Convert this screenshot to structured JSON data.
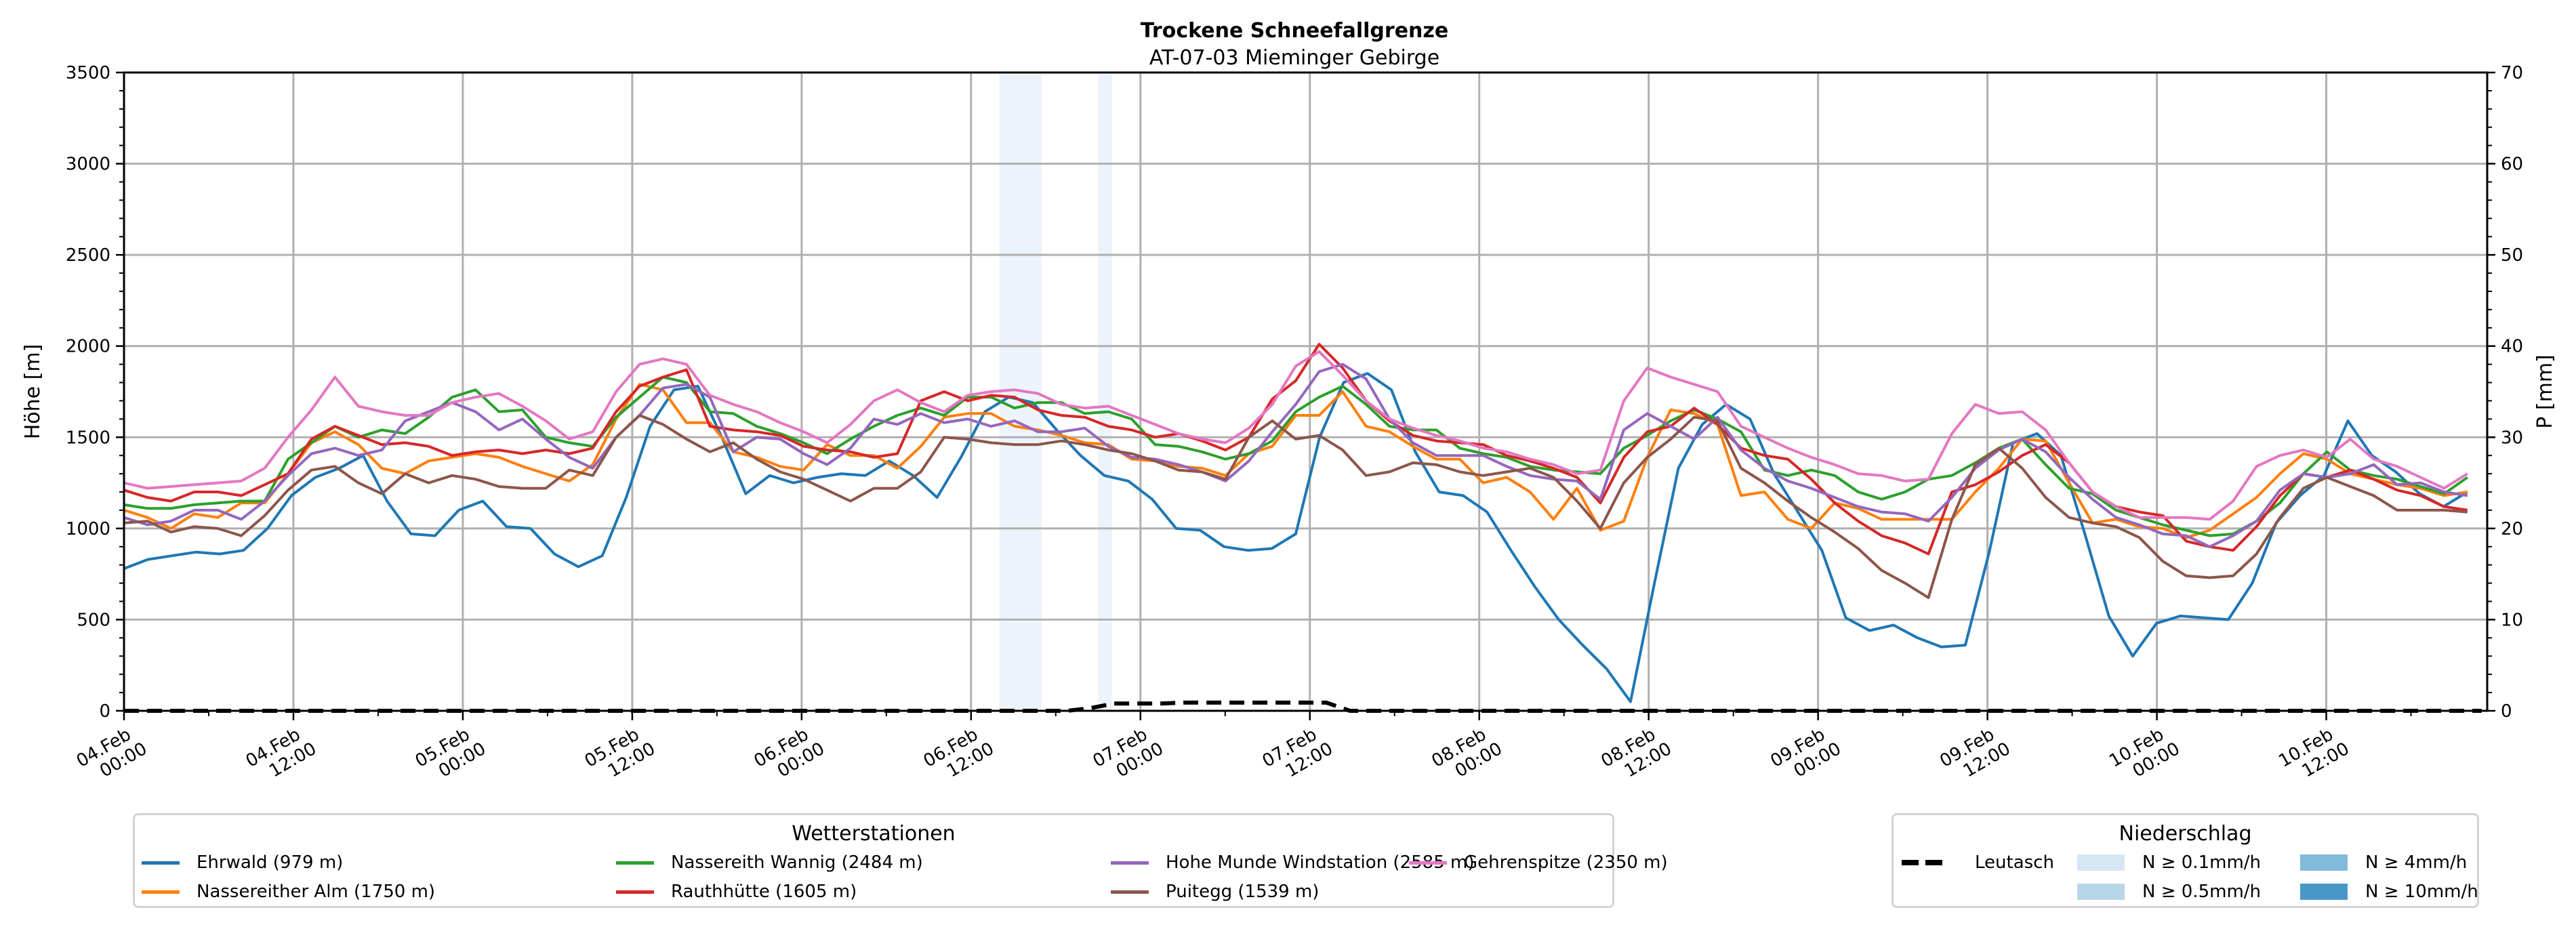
{
  "chart_data": {
    "type": "line",
    "title": "Trockene Schneefallgrenze",
    "subtitle": "AT-07-03 Mieminger Gebirge",
    "ylabel": "Höhe [m]",
    "y2label": "P [mm]",
    "ylim": [
      0,
      3500
    ],
    "y2lim": [
      0,
      70
    ],
    "yticks": [
      "0",
      "500",
      "1000",
      "1500",
      "2000",
      "2500",
      "3000",
      "3500"
    ],
    "y2ticks": [
      "0",
      "10",
      "20",
      "30",
      "40",
      "50",
      "60",
      "70"
    ],
    "grid": true,
    "x_start": "04.Feb 00:00",
    "x_step_hours": 2,
    "x_range_hours": [
      0,
      167.4
    ],
    "xticks": [
      {
        "hour": 0,
        "label": [
          "04.Feb",
          "00:00"
        ]
      },
      {
        "hour": 12,
        "label": [
          "04.Feb",
          "12:00"
        ]
      },
      {
        "hour": 24,
        "label": [
          "05.Feb",
          "00:00"
        ]
      },
      {
        "hour": 36,
        "label": [
          "05.Feb",
          "12:00"
        ]
      },
      {
        "hour": 48,
        "label": [
          "06.Feb",
          "00:00"
        ]
      },
      {
        "hour": 60,
        "label": [
          "06.Feb",
          "12:00"
        ]
      },
      {
        "hour": 72,
        "label": [
          "07.Feb",
          "00:00"
        ]
      },
      {
        "hour": 84,
        "label": [
          "07.Feb",
          "12:00"
        ]
      },
      {
        "hour": 96,
        "label": [
          "08.Feb",
          "00:00"
        ]
      },
      {
        "hour": 108,
        "label": [
          "08.Feb",
          "12:00"
        ]
      },
      {
        "hour": 120,
        "label": [
          "09.Feb",
          "00:00"
        ]
      },
      {
        "hour": 132,
        "label": [
          "09.Feb",
          "12:00"
        ]
      },
      {
        "hour": 144,
        "label": [
          "10.Feb",
          "00:00"
        ]
      },
      {
        "hour": 156,
        "label": [
          "10.Feb",
          "12:00"
        ]
      }
    ],
    "series": [
      {
        "name": "Ehrwald (979 m)",
        "color": "#1f77b4",
        "values": [
          780,
          830,
          850,
          870,
          860,
          880,
          1000,
          1180,
          1280,
          1330,
          1400,
          1150,
          970,
          960,
          1100,
          1150,
          1010,
          1000,
          860,
          790,
          850,
          1170,
          1560,
          1760,
          1780,
          1500,
          1190,
          1290,
          1250,
          1280,
          1300,
          1290,
          1370,
          1290,
          1170,
          1390,
          1640,
          1720,
          1690,
          1540,
          1400,
          1290,
          1260,
          1160,
          1000,
          990,
          900,
          880,
          890,
          970,
          1500,
          1800,
          1850,
          1760,
          1420,
          1200,
          1180,
          1090,
          880,
          680,
          500,
          360,
          230,
          50,
          700,
          1330,
          1570,
          1680,
          1600,
          1300,
          1090,
          880,
          510,
          440,
          470,
          400,
          350,
          360,
          870,
          1470,
          1520,
          1400,
          970,
          520,
          300,
          480,
          520,
          510,
          500,
          700,
          1030,
          1180,
          1290,
          1590,
          1400,
          1310,
          1190,
          1120,
          1200
        ]
      },
      {
        "name": "Nassereither Alm (1750 m)",
        "color": "#ff7f0e",
        "values": [
          1100,
          1060,
          1000,
          1080,
          1060,
          1140,
          1140,
          1300,
          1470,
          1530,
          1460,
          1330,
          1300,
          1370,
          1390,
          1410,
          1390,
          1340,
          1300,
          1260,
          1350,
          1600,
          1790,
          1760,
          1580,
          1580,
          1420,
          1390,
          1340,
          1320,
          1460,
          1400,
          1400,
          1330,
          1450,
          1610,
          1630,
          1630,
          1560,
          1540,
          1510,
          1470,
          1460,
          1380,
          1370,
          1340,
          1330,
          1290,
          1410,
          1450,
          1620,
          1620,
          1750,
          1560,
          1530,
          1450,
          1380,
          1380,
          1250,
          1280,
          1200,
          1050,
          1220,
          990,
          1040,
          1390,
          1650,
          1630,
          1570,
          1180,
          1200,
          1050,
          1000,
          1140,
          1110,
          1050,
          1050,
          1050,
          1050,
          1200,
          1330,
          1490,
          1480,
          1250,
          1030,
          1050,
          1010,
          1000,
          950,
          990,
          1080,
          1170,
          1300,
          1410,
          1380,
          1300,
          1270,
          1240,
          1220,
          1180,
          1200
        ]
      },
      {
        "name": "Nassereith Wannig (2484 m)",
        "color": "#2ca02c",
        "values": [
          1130,
          1110,
          1110,
          1130,
          1140,
          1150,
          1150,
          1380,
          1470,
          1560,
          1500,
          1540,
          1520,
          1610,
          1720,
          1760,
          1640,
          1650,
          1500,
          1470,
          1450,
          1610,
          1720,
          1830,
          1800,
          1640,
          1630,
          1560,
          1520,
          1470,
          1410,
          1490,
          1560,
          1620,
          1660,
          1620,
          1720,
          1720,
          1660,
          1690,
          1690,
          1630,
          1640,
          1600,
          1460,
          1450,
          1420,
          1380,
          1410,
          1480,
          1640,
          1720,
          1780,
          1680,
          1560,
          1540,
          1540,
          1440,
          1410,
          1390,
          1340,
          1320,
          1310,
          1300,
          1440,
          1510,
          1590,
          1650,
          1600,
          1530,
          1320,
          1290,
          1320,
          1290,
          1200,
          1160,
          1200,
          1270,
          1290,
          1360,
          1440,
          1490,
          1350,
          1220,
          1190,
          1100,
          1060,
          1020,
          990,
          960,
          970,
          1040,
          1140,
          1300,
          1420,
          1320,
          1290,
          1270,
          1230,
          1190,
          1280
        ]
      },
      {
        "name": "Rauthhütte (1605 m)",
        "color": "#d62728",
        "values": [
          1210,
          1170,
          1150,
          1200,
          1200,
          1180,
          1240,
          1300,
          1490,
          1560,
          1510,
          1460,
          1470,
          1450,
          1400,
          1420,
          1430,
          1410,
          1430,
          1410,
          1440,
          1640,
          1780,
          1830,
          1870,
          1560,
          1540,
          1530,
          1510,
          1450,
          1430,
          1420,
          1390,
          1410,
          1700,
          1750,
          1700,
          1730,
          1720,
          1650,
          1620,
          1610,
          1560,
          1540,
          1500,
          1520,
          1480,
          1430,
          1500,
          1710,
          1810,
          2010,
          1880,
          1700,
          1590,
          1510,
          1480,
          1470,
          1460,
          1400,
          1370,
          1330,
          1280,
          1140,
          1390,
          1530,
          1560,
          1660,
          1570,
          1440,
          1400,
          1380,
          1270,
          1140,
          1040,
          960,
          920,
          860,
          1200,
          1240,
          1310,
          1400,
          1460,
          1360,
          1200,
          1120,
          1090,
          1070,
          930,
          900,
          880,
          1010,
          1180,
          1300,
          1280,
          1320,
          1270,
          1210,
          1180,
          1120,
          1100
        ]
      },
      {
        "name": "Hohe Munde Windstation (2585 m)",
        "color": "#9467bd",
        "values": [
          1060,
          1020,
          1040,
          1100,
          1100,
          1050,
          1150,
          1290,
          1410,
          1440,
          1400,
          1430,
          1590,
          1640,
          1690,
          1640,
          1540,
          1600,
          1490,
          1390,
          1330,
          1500,
          1620,
          1770,
          1790,
          1720,
          1420,
          1500,
          1490,
          1410,
          1350,
          1440,
          1600,
          1570,
          1630,
          1580,
          1600,
          1560,
          1590,
          1530,
          1530,
          1550,
          1450,
          1390,
          1380,
          1350,
          1310,
          1260,
          1370,
          1530,
          1680,
          1860,
          1900,
          1820,
          1600,
          1470,
          1400,
          1400,
          1400,
          1340,
          1290,
          1270,
          1260,
          1160,
          1540,
          1630,
          1560,
          1490,
          1610,
          1430,
          1330,
          1260,
          1220,
          1170,
          1120,
          1090,
          1080,
          1040,
          1170,
          1330,
          1430,
          1490,
          1420,
          1280,
          1160,
          1060,
          1020,
          970,
          960,
          900,
          960,
          1040,
          1210,
          1300,
          1280,
          1300,
          1350,
          1240,
          1250,
          1200,
          1180
        ]
      },
      {
        "name": "Puitegg (1539 m)",
        "color": "#8c564b",
        "values": [
          1030,
          1040,
          980,
          1010,
          1000,
          960,
          1070,
          1210,
          1320,
          1340,
          1250,
          1190,
          1300,
          1250,
          1290,
          1270,
          1230,
          1220,
          1220,
          1320,
          1290,
          1500,
          1620,
          1570,
          1490,
          1420,
          1470,
          1380,
          1310,
          1270,
          1210,
          1150,
          1220,
          1220,
          1310,
          1500,
          1490,
          1470,
          1460,
          1460,
          1480,
          1460,
          1430,
          1410,
          1370,
          1320,
          1310,
          1270,
          1500,
          1590,
          1490,
          1510,
          1430,
          1290,
          1310,
          1360,
          1350,
          1310,
          1290,
          1310,
          1330,
          1280,
          1150,
          1000,
          1250,
          1390,
          1490,
          1610,
          1590,
          1330,
          1250,
          1150,
          1060,
          980,
          890,
          770,
          700,
          620,
          1050,
          1350,
          1440,
          1330,
          1170,
          1060,
          1030,
          1010,
          950,
          820,
          740,
          730,
          740,
          860,
          1060,
          1220,
          1280,
          1230,
          1180,
          1100,
          1100,
          1100,
          1090
        ]
      },
      {
        "name": "Gehrenspitze (2350 m)",
        "color": "#e377c2",
        "values": [
          1250,
          1220,
          1230,
          1240,
          1250,
          1260,
          1330,
          1500,
          1650,
          1830,
          1670,
          1640,
          1620,
          1620,
          1690,
          1720,
          1740,
          1670,
          1590,
          1490,
          1530,
          1750,
          1900,
          1930,
          1900,
          1730,
          1680,
          1640,
          1580,
          1530,
          1470,
          1570,
          1700,
          1760,
          1690,
          1640,
          1730,
          1750,
          1760,
          1740,
          1680,
          1660,
          1670,
          1620,
          1570,
          1520,
          1490,
          1470,
          1550,
          1680,
          1890,
          1970,
          1840,
          1700,
          1600,
          1550,
          1510,
          1480,
          1440,
          1420,
          1380,
          1350,
          1300,
          1320,
          1700,
          1880,
          1830,
          1790,
          1750,
          1560,
          1500,
          1440,
          1390,
          1350,
          1300,
          1290,
          1260,
          1270,
          1520,
          1680,
          1630,
          1640,
          1540,
          1360,
          1200,
          1120,
          1060,
          1060,
          1060,
          1050,
          1150,
          1340,
          1400,
          1430,
          1390,
          1490,
          1380,
          1340,
          1280,
          1220,
          1300
        ]
      }
    ],
    "precipitation": {
      "name": "Leutasch",
      "color": "#000000",
      "values_mm": [
        0,
        0,
        0,
        0,
        0,
        0,
        0,
        0,
        0,
        0,
        0,
        0,
        0,
        0,
        0,
        0,
        0,
        0,
        0,
        0,
        0,
        0,
        0,
        0,
        0,
        0,
        0,
        0,
        0,
        0,
        0,
        0,
        0,
        0,
        0,
        0,
        0,
        0,
        0,
        0,
        0,
        0.3,
        0.8,
        0.8,
        0.8,
        0.9,
        0.9,
        0.9,
        0.9,
        0.9,
        0.9,
        0.9,
        0,
        0,
        0,
        0,
        0,
        0,
        0,
        0,
        0,
        0,
        0,
        0,
        0,
        0,
        0,
        0,
        0,
        0,
        0,
        0,
        0,
        0,
        0,
        0,
        0,
        0,
        0,
        0,
        0,
        0,
        0,
        0,
        0,
        0,
        0,
        0,
        0,
        0,
        0,
        0,
        0,
        0,
        0,
        0,
        0,
        0,
        0,
        0,
        0
      ]
    },
    "precip_intensity_bands": [
      {
        "from_hour": 62,
        "to_hour": 65,
        "class": "N ≥ 0.1mm/h"
      },
      {
        "from_hour": 69,
        "to_hour": 70,
        "class": "N ≥ 0.1mm/h"
      }
    ],
    "legend_stations": {
      "title": "Wetterstationen",
      "placement": "bottom-left"
    },
    "legend_precip": {
      "title": "Niederschlag",
      "placement": "bottom-right",
      "line_label": "Leutasch",
      "classes": [
        {
          "label": "N ≥ 0.1mm/h",
          "color": "#d6e6f4"
        },
        {
          "label": "N ≥ 0.5mm/h",
          "color": "#b9d5ea"
        },
        {
          "label": "N ≥ 4mm/h",
          "color": "#82badb"
        },
        {
          "label": "N ≥ 10mm/h",
          "color": "#4a98c9"
        }
      ]
    },
    "band_fill": "#edf3fa"
  }
}
